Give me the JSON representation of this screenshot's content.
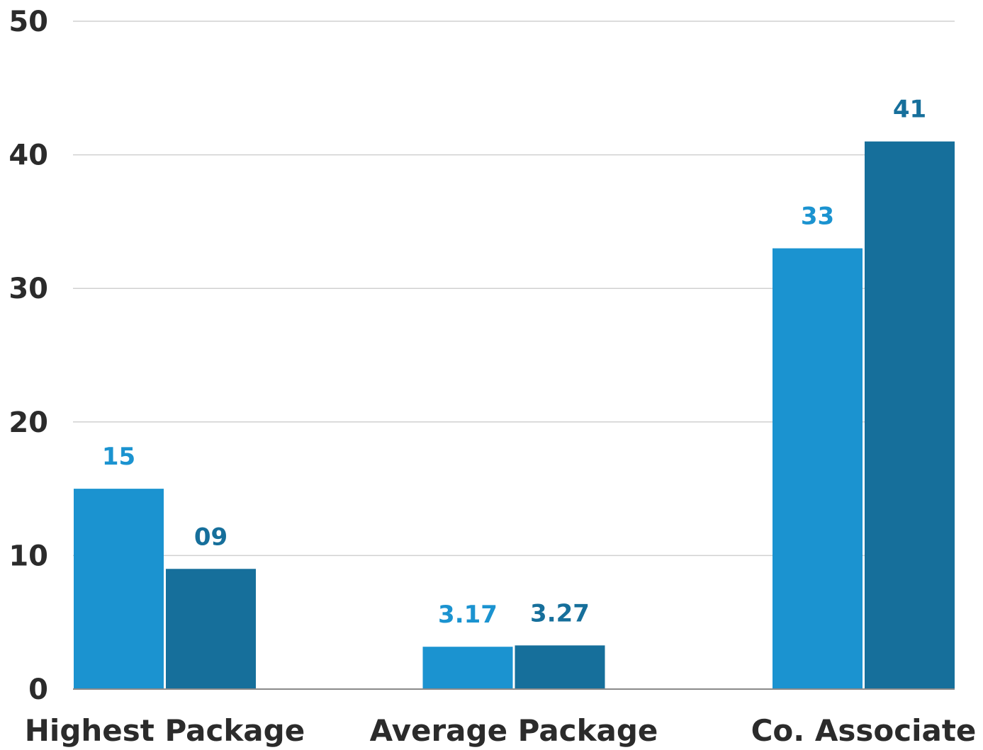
{
  "chart_data": {
    "type": "bar",
    "categories": [
      "Highest Package",
      "Average Package",
      "Co. Associate"
    ],
    "series": [
      {
        "values": [
          15,
          3.17,
          33
        ],
        "labels": [
          "15",
          "3.17",
          "33"
        ],
        "color": "#1b93d0"
      },
      {
        "values": [
          9,
          3.27,
          41
        ],
        "labels": [
          "09",
          "3.27",
          "41"
        ],
        "color": "#166f9b"
      }
    ],
    "ylim": [
      0,
      50
    ],
    "yticks": [
      0,
      10,
      20,
      30,
      40,
      50
    ],
    "ytick_labels": [
      "0",
      "10",
      "20",
      "30",
      "40",
      "50"
    ],
    "grid": true,
    "legend": "none"
  }
}
